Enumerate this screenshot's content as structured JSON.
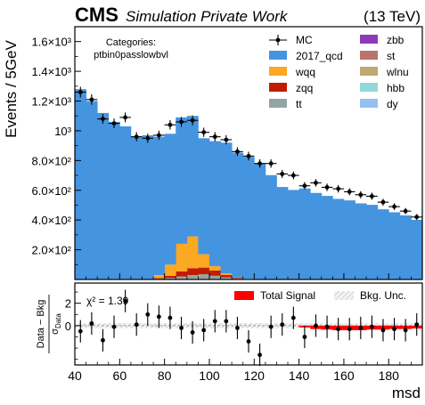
{
  "header": {
    "experiment": "CMS",
    "label": "Simulation Private Work",
    "energy": "(13 TeV)"
  },
  "categories_box": {
    "title": "Categories:",
    "name": "ptbin0passlowbvl"
  },
  "ratio_panel": {
    "chi2_label": "χ² = 1.39",
    "legend": [
      {
        "label": "Total Signal",
        "color": "#ff0000"
      },
      {
        "label": "Bkg. Unc.",
        "color": "#d9d9d9"
      }
    ]
  },
  "chart_data": {
    "type": "bar",
    "xlabel": "msd",
    "ylabel": "Events / 5GeV",
    "ratio_ylabel": "(Data - Bkg) / σ_Data",
    "xlim": [
      40,
      195
    ],
    "ylim": [
      0,
      1700
    ],
    "ratio_ylim": [
      -3.5,
      3.8
    ],
    "bin_edges": [
      40,
      45,
      50,
      55,
      60,
      65,
      70,
      75,
      80,
      85,
      90,
      95,
      100,
      105,
      110,
      115,
      120,
      125,
      130,
      135,
      140,
      145,
      150,
      155,
      160,
      165,
      170,
      175,
      180,
      185,
      190,
      195
    ],
    "x_ticks": [
      40,
      60,
      80,
      100,
      120,
      140,
      160,
      180
    ],
    "y_ticks": [
      {
        "v": 200,
        "label": "2.0×10²"
      },
      {
        "v": 400,
        "label": "4.0×10²"
      },
      {
        "v": 600,
        "label": "6.0×10²"
      },
      {
        "v": 800,
        "label": "8.0×10²"
      },
      {
        "v": 1000,
        "label": "10³"
      },
      {
        "v": 1200,
        "label": "1.2×10³"
      },
      {
        "v": 1400,
        "label": "1.4×10³"
      },
      {
        "v": 1600,
        "label": "1.6×10³"
      }
    ],
    "ratio_ticks": [
      0,
      2
    ],
    "series": [
      {
        "name": "tt",
        "color": "#94a4a2",
        "values": [
          0,
          0,
          0,
          0,
          0,
          0,
          0,
          5,
          10,
          20,
          30,
          35,
          25,
          15,
          8,
          5,
          3,
          2,
          2,
          2,
          2,
          2,
          2,
          2,
          2,
          2,
          2,
          2,
          2,
          1,
          1
        ]
      },
      {
        "name": "zqq",
        "color": "#c01c02",
        "values": [
          0,
          0,
          0,
          0,
          0,
          0,
          0,
          5,
          15,
          35,
          45,
          45,
          35,
          15,
          5,
          0,
          0,
          0,
          0,
          0,
          0,
          0,
          0,
          0,
          0,
          0,
          0,
          0,
          0,
          0,
          0
        ]
      },
      {
        "name": "wqq",
        "color": "#fca822",
        "values": [
          0,
          0,
          0,
          0,
          0,
          0,
          0,
          20,
          75,
          185,
          215,
          90,
          30,
          10,
          0,
          0,
          0,
          0,
          0,
          0,
          0,
          0,
          0,
          0,
          0,
          0,
          0,
          0,
          0,
          0,
          0
        ]
      },
      {
        "name": "2017_qcd",
        "color": "#4594e0",
        "values": [
          1280,
          1200,
          1120,
          1060,
          1030,
          960,
          970,
          930,
          880,
          850,
          810,
          780,
          840,
          880,
          840,
          820,
          780,
          700,
          620,
          600,
          610,
          580,
          560,
          540,
          530,
          510,
          500,
          470,
          450,
          430,
          400
        ]
      },
      {
        "name": "zbb",
        "color": "#8e3ab4",
        "values": [
          0,
          0,
          0,
          0,
          0,
          0,
          0,
          0,
          0,
          0,
          0,
          0,
          0,
          0,
          0,
          0,
          0,
          0,
          0,
          0,
          0,
          0,
          0,
          0,
          0,
          0,
          0,
          0,
          0,
          0,
          0
        ]
      },
      {
        "name": "st",
        "color": "#b9746b",
        "values": [
          0,
          0,
          0,
          0,
          0,
          0,
          0,
          0,
          0,
          0,
          0,
          0,
          0,
          0,
          0,
          0,
          0,
          0,
          0,
          0,
          0,
          0,
          0,
          0,
          0,
          0,
          0,
          0,
          0,
          0,
          0
        ]
      },
      {
        "name": "wlnu",
        "color": "#bfa970",
        "values": [
          0,
          0,
          0,
          0,
          0,
          0,
          0,
          0,
          0,
          0,
          0,
          0,
          0,
          0,
          0,
          0,
          0,
          0,
          0,
          0,
          0,
          0,
          0,
          0,
          0,
          0,
          0,
          0,
          0,
          0,
          0
        ]
      },
      {
        "name": "hbb",
        "color": "#92d8d8",
        "values": [
          0,
          0,
          0,
          0,
          0,
          0,
          0,
          0,
          0,
          0,
          0,
          0,
          0,
          0,
          0,
          0,
          0,
          0,
          0,
          0,
          0,
          0,
          0,
          0,
          0,
          0,
          0,
          0,
          0,
          0,
          0
        ]
      },
      {
        "name": "dy",
        "color": "#93c0f2",
        "values": [
          0,
          0,
          0,
          0,
          0,
          0,
          0,
          0,
          0,
          0,
          0,
          0,
          0,
          0,
          0,
          0,
          0,
          0,
          0,
          0,
          0,
          0,
          0,
          0,
          0,
          0,
          0,
          0,
          0,
          0,
          0
        ]
      }
    ],
    "mc": {
      "name": "MC",
      "values": [
        1260,
        1210,
        1080,
        1050,
        1090,
        960,
        950,
        970,
        1040,
        1060,
        1070,
        990,
        960,
        940,
        860,
        830,
        780,
        780,
        710,
        700,
        630,
        650,
        620,
        610,
        590,
        570,
        560,
        520,
        490,
        460,
        420
      ],
      "errors": [
        36,
        35,
        33,
        32,
        33,
        31,
        31,
        31,
        32,
        33,
        33,
        31,
        31,
        31,
        29,
        29,
        28,
        28,
        27,
        26,
        25,
        25,
        25,
        25,
        24,
        24,
        24,
        23,
        22,
        21,
        20
      ]
    },
    "ratio": {
      "values": [
        -0.5,
        0.2,
        -1.3,
        -0.1,
        2.2,
        0.1,
        1.0,
        0.8,
        0.7,
        -0.2,
        -0.6,
        -0.4,
        0.4,
        0.4,
        -0.2,
        -1.4,
        -2.6,
        -0.1,
        0.1,
        0.7,
        -1.0,
        0.0,
        -0.1,
        -0.3,
        -0.3,
        -0.2,
        -0.1,
        -0.4,
        -0.3,
        -0.4,
        0.1
      ],
      "errors": [
        1,
        1,
        1,
        1,
        1,
        1,
        1,
        1,
        1,
        1,
        1,
        1,
        1,
        1,
        1,
        1,
        1,
        1,
        1,
        1,
        1,
        1,
        1,
        1,
        1,
        1,
        1,
        1,
        1,
        1,
        1
      ],
      "signal": [
        0,
        0,
        0,
        0,
        0,
        0,
        0,
        0,
        0,
        0,
        0,
        0,
        0,
        0,
        0,
        0,
        0,
        0,
        0,
        0,
        -0.15,
        -0.3,
        -0.35,
        -0.4,
        -0.4,
        -0.4,
        -0.35,
        -0.35,
        -0.3,
        -0.3,
        -0.25
      ],
      "bkg_unc": 0.22
    }
  }
}
